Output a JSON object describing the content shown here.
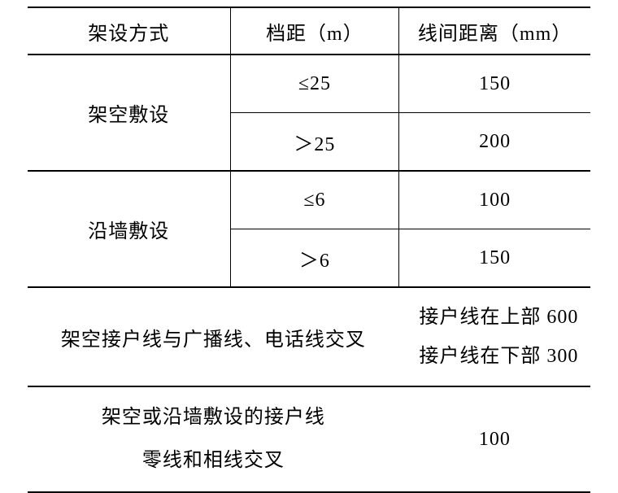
{
  "table": {
    "columns": [
      "架设方式",
      "档距（m）",
      "线间距离（mm）"
    ],
    "col_widths_pct": [
      36,
      30,
      34
    ],
    "font_size_pt": 18,
    "text_color": "#000000",
    "background_color": "#ffffff",
    "border_thick_color": "#000000",
    "border_thin_color": "#000000",
    "rows": [
      {
        "method": "架空敷设",
        "span": "≤25",
        "distance": "150"
      },
      {
        "method": "架空敷设",
        "span": "＞25",
        "distance": "200"
      },
      {
        "method": "沿墙敷设",
        "span": "≤6",
        "distance": "100"
      },
      {
        "method": "沿墙敷设",
        "span": "＞6",
        "distance": "150"
      },
      {
        "method_merged": "架空接户线与广播线、电话线交叉",
        "distance_lines": [
          "接户线在上部 600",
          "接户线在下部 300"
        ]
      },
      {
        "method_merged_lines": [
          "架空或沿墙敷设的接户线",
          "零线和相线交叉"
        ],
        "distance": "100"
      }
    ],
    "merges": [
      {
        "col": 0,
        "from_row": 0,
        "to_row": 1
      },
      {
        "col": 0,
        "from_row": 2,
        "to_row": 3
      },
      {
        "cols": [
          0,
          1
        ],
        "row": 4
      },
      {
        "cols": [
          0,
          1
        ],
        "row": 5
      }
    ]
  }
}
